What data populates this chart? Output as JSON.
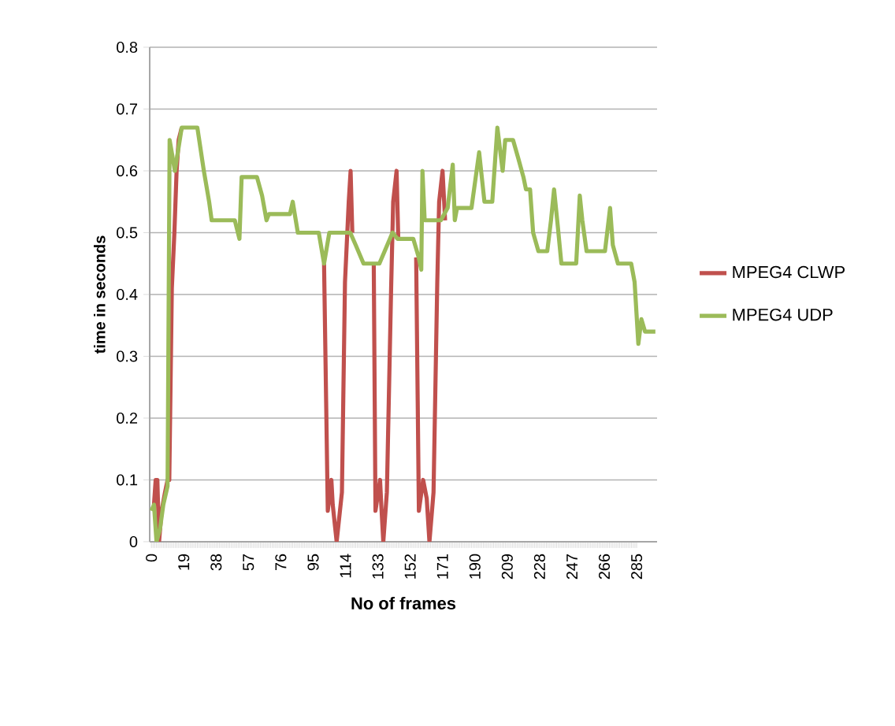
{
  "chart_data": {
    "type": "line",
    "xlabel": "No of frames",
    "ylabel": "time in seconds",
    "xlim": [
      -1,
      297
    ],
    "xticks": [
      0,
      19,
      38,
      57,
      76,
      95,
      114,
      133,
      152,
      171,
      190,
      209,
      228,
      247,
      266,
      285
    ],
    "ylim": [
      0,
      0.8
    ],
    "yticks": [
      0,
      0.1,
      0.2,
      0.3,
      0.4,
      0.5,
      0.6,
      0.7,
      0.8
    ],
    "grid": "y",
    "legend": "right",
    "marker": "none",
    "line_style": "solid",
    "series": [
      {
        "name": "MPEG4 CLWP",
        "color": "#c0504d",
        "x": [
          1.5,
          2.5,
          3.5,
          4.5,
          6,
          8,
          9.5,
          10.5,
          12,
          13.5,
          14.8,
          16,
          17.8,
          60,
          101.4,
          103.6,
          105.7,
          106.5,
          108.8,
          111.9,
          113.7,
          115.9,
          117,
          118,
          125,
          130.6,
          131.6,
          134.3,
          135,
          136.2,
          138.3,
          140.8,
          142,
          144,
          145,
          150,
          155.5,
          157.1,
          159.6,
          161.7,
          163.3,
          165.7,
          167.9,
          169,
          171,
          172.5
        ],
        "values": [
          0.06,
          0.1,
          0.1,
          0.0,
          0.05,
          0.08,
          0.1,
          0.1,
          0.41,
          0.5,
          0.6,
          0.65,
          0.67,
          null,
          0.45,
          0.05,
          0.1,
          0.06,
          0.0,
          0.08,
          0.42,
          0.55,
          0.6,
          0.5,
          null,
          0.45,
          0.05,
          0.1,
          0.06,
          0.0,
          0.08,
          0.41,
          0.55,
          0.6,
          0.49,
          null,
          0.46,
          0.05,
          0.1,
          0.07,
          0.0,
          0.08,
          0.42,
          0.55,
          0.6,
          0.52
        ]
      },
      {
        "name": "MPEG4 UDP",
        "color": "#9bbb59",
        "x": [
          0,
          1.5,
          3,
          5,
          7,
          9.5,
          10.7,
          13.8,
          17.8,
          27,
          30.8,
          33.9,
          35.4,
          46,
          49,
          51.7,
          53,
          62,
          65,
          67.6,
          69,
          81.4,
          83,
          86,
          98.3,
          101.4,
          104.5,
          116.8,
          120,
          124.6,
          133.9,
          137,
          141.6,
          144.6,
          153.8,
          157,
          158.5,
          159.2,
          160.5,
          170,
          174,
          177,
          178.2,
          179.5,
          188,
          192.5,
          195.6,
          200.2,
          203.2,
          206.3,
          207.8,
          212.4,
          215.5,
          218.5,
          220,
          222.4,
          224.2,
          227.3,
          232.5,
          234.7,
          236.5,
          238.7,
          240.8,
          249.5,
          251.6,
          253.1,
          255.6,
          266.4,
          269.4,
          271,
          274,
          281.8,
          283.8,
          286,
          287.8,
          289.9,
          296
        ],
        "values": [
          0.05,
          0.06,
          0.0,
          0.02,
          0.06,
          0.09,
          0.65,
          0.6,
          0.67,
          0.67,
          0.6,
          0.55,
          0.52,
          0.52,
          0.52,
          0.49,
          0.59,
          0.59,
          0.56,
          0.52,
          0.53,
          0.53,
          0.55,
          0.5,
          0.5,
          0.45,
          0.5,
          0.5,
          0.48,
          0.45,
          0.45,
          0.47,
          0.5,
          0.49,
          0.49,
          0.46,
          0.44,
          0.6,
          0.52,
          0.52,
          0.54,
          0.61,
          0.52,
          0.54,
          0.54,
          0.63,
          0.55,
          0.55,
          0.67,
          0.6,
          0.65,
          0.65,
          0.62,
          0.59,
          0.57,
          0.57,
          0.5,
          0.47,
          0.47,
          0.52,
          0.57,
          0.51,
          0.45,
          0.45,
          0.56,
          0.52,
          0.47,
          0.47,
          0.54,
          0.48,
          0.45,
          0.45,
          0.42,
          0.32,
          0.36,
          0.34,
          0.34
        ]
      }
    ]
  }
}
